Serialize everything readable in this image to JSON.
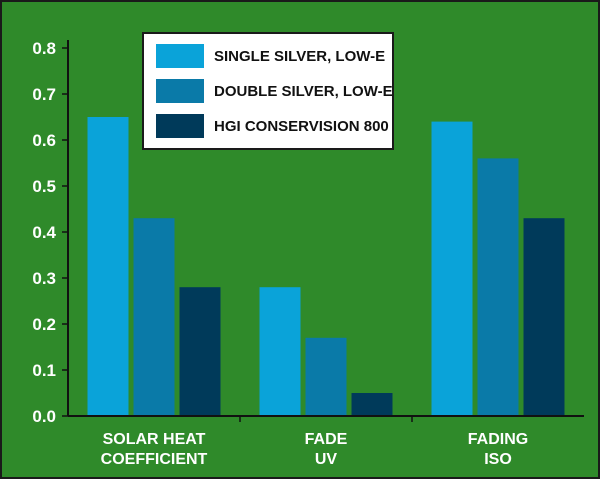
{
  "chart_data": {
    "type": "bar",
    "categories": [
      [
        "SOLAR HEAT",
        "COEFFICIENT"
      ],
      [
        "FADE",
        "UV"
      ],
      [
        "FADING",
        "ISO"
      ]
    ],
    "series": [
      {
        "name": "SINGLE SILVER, LOW-E",
        "color": "#0aa3d9",
        "values": [
          0.65,
          0.28,
          0.64
        ]
      },
      {
        "name": "DOUBLE SILVER, LOW-E",
        "color": "#0a7aa8",
        "values": [
          0.43,
          0.17,
          0.56
        ]
      },
      {
        "name": "HGI CONSERVISION 800",
        "color": "#003a5a",
        "values": [
          0.28,
          0.05,
          0.43
        ]
      }
    ],
    "ylim": [
      0,
      0.8
    ],
    "yticks": [
      "0.0",
      "0.1",
      "0.2",
      "0.3",
      "0.4",
      "0.5",
      "0.6",
      "0.7",
      "0.8"
    ],
    "background": "#2f8a2a",
    "legend_position": "top-left",
    "grid": false
  }
}
